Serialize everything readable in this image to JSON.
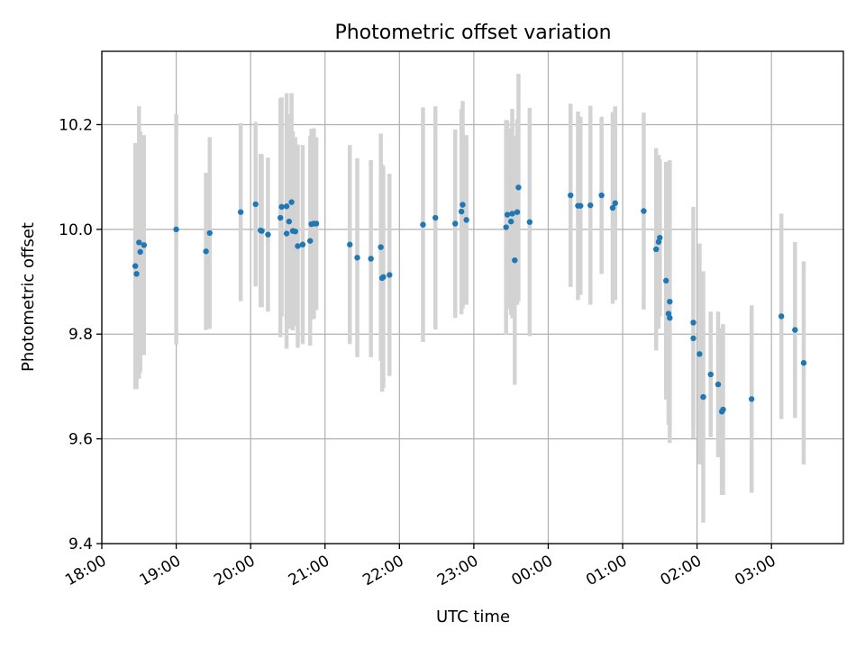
{
  "chart_data": {
    "type": "scatter",
    "title": "Photometric offset variation",
    "xlabel": "UTC time",
    "ylabel": "Photometric offset",
    "ylim": [
      9.4,
      10.34
    ],
    "xlim": [
      "18:00",
      "03:58"
    ],
    "x_ticks": [
      "18:00",
      "19:00",
      "20:00",
      "21:00",
      "22:00",
      "23:00",
      "00:00",
      "01:00",
      "02:00",
      "03:00"
    ],
    "y_ticks": [
      "9.4",
      "9.6",
      "9.8",
      "10.0",
      "10.2"
    ],
    "grid": true,
    "point_color": "#1f77b4",
    "errorbar_color": "#d3d3d3",
    "x": [
      "18:27",
      "18:28",
      "18:30",
      "18:31",
      "18:34",
      "19:00",
      "19:24",
      "19:27",
      "19:52",
      "20:04",
      "20:08",
      "20:09",
      "20:14",
      "20:24",
      "20:25",
      "20:29",
      "20:29",
      "20:31",
      "20:33",
      "20:34",
      "20:36",
      "20:38",
      "20:42",
      "20:48",
      "20:49",
      "20:51",
      "20:53",
      "21:20",
      "21:26",
      "21:37",
      "21:45",
      "21:46",
      "21:47",
      "21:52",
      "22:19",
      "22:29",
      "22:45",
      "22:50",
      "22:51",
      "22:54",
      "23:26",
      "23:27",
      "23:30",
      "23:31",
      "23:33",
      "23:35",
      "23:36",
      "23:45",
      "00:18",
      "00:24",
      "00:26",
      "00:34",
      "00:43",
      "00:52",
      "00:54",
      "01:17",
      "01:27",
      "01:29",
      "01:30",
      "01:35",
      "01:37",
      "01:38",
      "01:38",
      "01:57",
      "01:57",
      "02:02",
      "02:05",
      "02:11",
      "02:17",
      "02:20",
      "02:21",
      "02:44",
      "03:08",
      "03:19",
      "03:26"
    ],
    "y": [
      9.93,
      9.915,
      9.975,
      9.957,
      9.97,
      10.0,
      9.958,
      9.993,
      10.033,
      10.048,
      9.998,
      9.997,
      9.99,
      10.022,
      10.043,
      9.992,
      10.044,
      10.015,
      10.052,
      9.997,
      9.996,
      9.968,
      9.971,
      9.978,
      10.01,
      10.011,
      10.011,
      9.971,
      9.946,
      9.944,
      9.966,
      9.907,
      9.909,
      9.913,
      10.009,
      10.022,
      10.011,
      10.034,
      10.047,
      10.018,
      10.004,
      10.028,
      10.015,
      10.03,
      9.941,
      10.033,
      10.08,
      10.014,
      10.065,
      10.045,
      10.045,
      10.046,
      10.065,
      10.041,
      10.05,
      10.035,
      9.962,
      9.976,
      9.984,
      9.902,
      9.839,
      9.831,
      9.862,
      9.792,
      9.822,
      9.762,
      9.68,
      9.723,
      9.704,
      9.652,
      9.656,
      9.676,
      9.834,
      9.808,
      9.745
    ],
    "err": [
      0.235,
      0.22,
      0.26,
      0.23,
      0.21,
      0.22,
      0.15,
      0.183,
      0.17,
      0.157,
      0.146,
      0.146,
      0.147,
      0.228,
      0.209,
      0.22,
      0.216,
      0.205,
      0.208,
      0.19,
      0.18,
      0.194,
      0.19,
      0.2,
      0.182,
      0.182,
      0.165,
      0.19,
      0.19,
      0.188,
      0.217,
      0.217,
      0.212,
      0.193,
      0.224,
      0.213,
      0.18,
      0.196,
      0.198,
      0.162,
      0.205,
      0.18,
      0.178,
      0.2,
      0.238,
      0.177,
      0.217,
      0.218,
      0.175,
      0.18,
      0.17,
      0.19,
      0.15,
      0.183,
      0.185,
      0.188,
      0.193,
      0.166,
      0.15,
      0.227,
      0.212,
      0.205,
      0.27,
      0.17,
      0.221,
      0.211,
      0.24,
      0.12,
      0.139,
      0.159,
      0.163,
      0.179,
      0.196,
      0.168,
      0.194
    ]
  }
}
